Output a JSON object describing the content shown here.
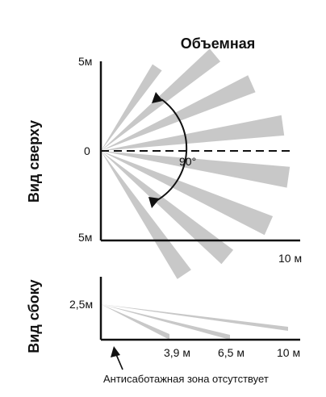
{
  "title": "Объемная",
  "top_view": {
    "side_label": "Вид сверху",
    "y_top_label": "5м",
    "y_mid_label": "0",
    "y_bottom_label": "5м",
    "x_label": "10 м",
    "angle_label": "90°"
  },
  "side_view": {
    "side_label": "Вид сбоку",
    "height_label": "2,5м",
    "x_ticks": [
      "3,9 м",
      "6,5 м",
      "10 м"
    ],
    "note": "Антисаботажная зона отсутствует"
  },
  "colors": {
    "beam_fill": "#c8c8c8",
    "axis": "#111111",
    "background": "#ffffff"
  }
}
